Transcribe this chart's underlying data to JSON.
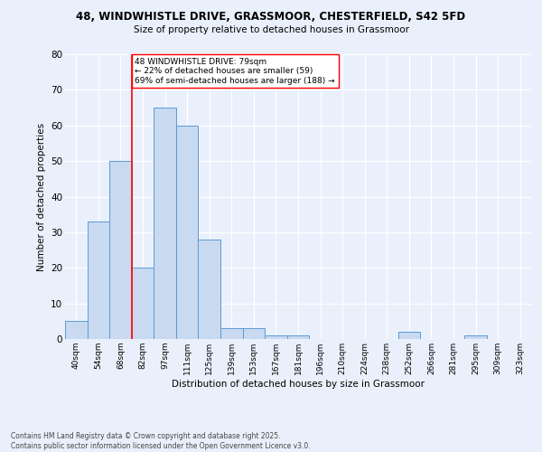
{
  "title_line1": "48, WINDWHISTLE DRIVE, GRASSMOOR, CHESTERFIELD, S42 5FD",
  "title_line2": "Size of property relative to detached houses in Grassmoor",
  "xlabel": "Distribution of detached houses by size in Grassmoor",
  "ylabel": "Number of detached properties",
  "bin_labels": [
    "40sqm",
    "54sqm",
    "68sqm",
    "82sqm",
    "97sqm",
    "111sqm",
    "125sqm",
    "139sqm",
    "153sqm",
    "167sqm",
    "181sqm",
    "196sqm",
    "210sqm",
    "224sqm",
    "238sqm",
    "252sqm",
    "266sqm",
    "281sqm",
    "295sqm",
    "309sqm",
    "323sqm"
  ],
  "bar_values": [
    5,
    33,
    50,
    20,
    65,
    60,
    28,
    3,
    3,
    1,
    1,
    0,
    0,
    0,
    0,
    2,
    0,
    0,
    1,
    0,
    0
  ],
  "bar_color": "#c9d9f0",
  "bar_edge_color": "#5b9bd5",
  "vline_color": "red",
  "annotation_text": "48 WINDWHISTLE DRIVE: 79sqm\n← 22% of detached houses are smaller (59)\n69% of semi-detached houses are larger (188) →",
  "annotation_box_color": "white",
  "annotation_box_edge": "red",
  "ylim": [
    0,
    80
  ],
  "yticks": [
    0,
    10,
    20,
    30,
    40,
    50,
    60,
    70,
    80
  ],
  "background_color": "#eaf0fb",
  "grid_color": "white",
  "footer_line1": "Contains HM Land Registry data © Crown copyright and database right 2025.",
  "footer_line2": "Contains public sector information licensed under the Open Government Licence v3.0."
}
